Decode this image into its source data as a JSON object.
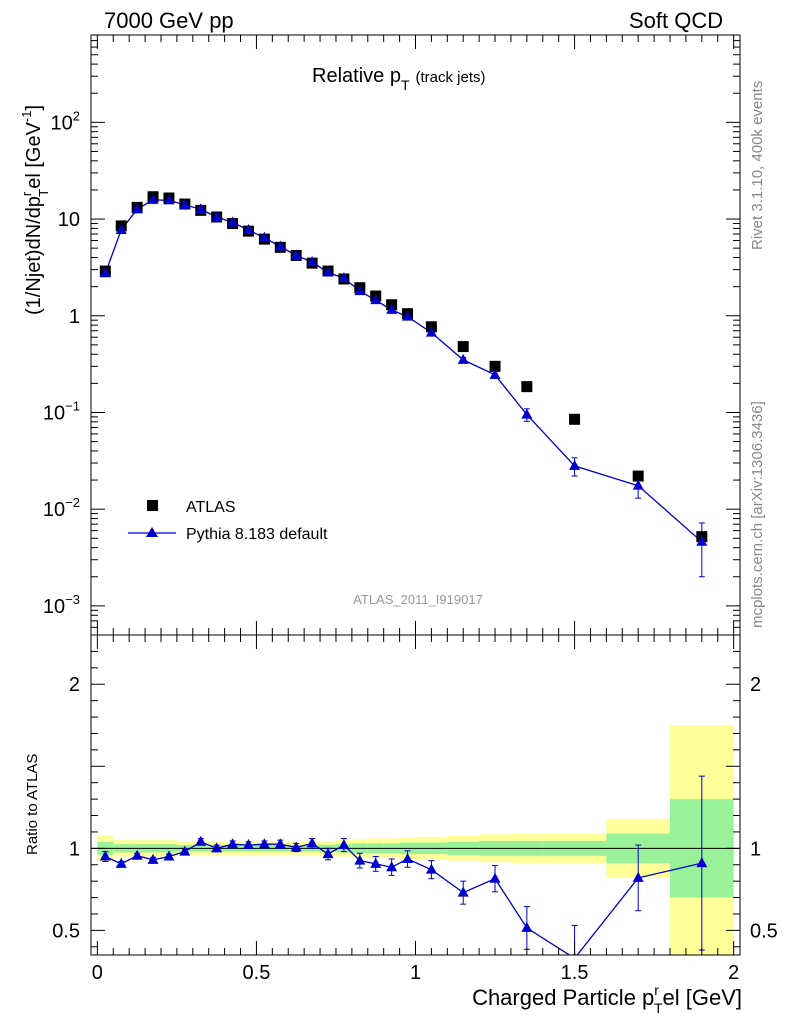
{
  "header": {
    "energy_label": "7000 GeV pp",
    "process_label": "Soft QCD"
  },
  "side_labels": {
    "rivet": "Rivet 3.1.10,  400k events",
    "mcplots": "mcplots.cern.ch [arXiv:1306.3436]"
  },
  "colors": {
    "mc": "#0000cc",
    "band_outer": "#ffff99",
    "band_inner": "#99f299",
    "data": "#000000",
    "watermark": "#999999"
  },
  "chart_data": [
    {
      "type": "scatter",
      "title": "Relative p",
      "title_subscript": "T",
      "title_suffix": "(track jets)",
      "ylabel": "(1/Njet)dN/dp",
      "ylabel_super": "r",
      "ylabel_sub": "T",
      "ylabel_mid": "el [GeV",
      "ylabel_unit_super": "-1",
      "ylabel_end": "]",
      "yscale": "log",
      "ylim": [
        0.0005,
        800
      ],
      "xlim": [
        -0.02,
        2.02
      ],
      "y_ticks": [
        {
          "v": 100,
          "base": "10",
          "exp": "2"
        },
        {
          "v": 10,
          "base": "10",
          "exp": ""
        },
        {
          "v": 1,
          "base": "1",
          "exp": ""
        },
        {
          "v": 0.1,
          "base": "10",
          "exp": "−1"
        },
        {
          "v": 0.01,
          "base": "10",
          "exp": "−2"
        },
        {
          "v": 0.001,
          "base": "10",
          "exp": "−3"
        }
      ],
      "watermark": "ATLAS_2011_I919017",
      "legend": [
        {
          "label": "ATLAS",
          "marker": "square"
        },
        {
          "label": "Pythia 8.183 default",
          "marker": "triangle-line"
        }
      ],
      "series": [
        {
          "name": "ATLAS",
          "x": [
            0.025,
            0.075,
            0.125,
            0.175,
            0.225,
            0.275,
            0.325,
            0.375,
            0.425,
            0.475,
            0.525,
            0.575,
            0.625,
            0.675,
            0.725,
            0.775,
            0.825,
            0.875,
            0.925,
            0.975,
            1.05,
            1.15,
            1.25,
            1.35,
            1.5,
            1.7,
            1.9
          ],
          "y": [
            2.9,
            8.5,
            13.2,
            17.0,
            16.5,
            14.3,
            12.3,
            10.5,
            9.0,
            7.5,
            6.2,
            5.1,
            4.2,
            3.5,
            2.9,
            2.4,
            1.95,
            1.6,
            1.3,
            1.05,
            0.77,
            0.48,
            0.3,
            0.185,
            0.085,
            0.022,
            0.0052
          ]
        },
        {
          "name": "Pythia 8.183 default",
          "x": [
            0.025,
            0.075,
            0.125,
            0.175,
            0.225,
            0.275,
            0.325,
            0.375,
            0.425,
            0.475,
            0.525,
            0.575,
            0.625,
            0.675,
            0.725,
            0.775,
            0.825,
            0.875,
            0.925,
            0.975,
            1.05,
            1.15,
            1.25,
            1.35,
            1.5,
            1.7,
            1.9
          ],
          "y": [
            2.75,
            7.7,
            12.6,
            15.8,
            15.6,
            14.0,
            12.6,
            10.5,
            9.2,
            7.7,
            6.4,
            5.2,
            4.2,
            3.6,
            2.8,
            2.45,
            1.8,
            1.45,
            1.15,
            0.98,
            0.67,
            0.35,
            0.245,
            0.095,
            0.028,
            0.0175,
            0.0046
          ],
          "yerr": [
            0.1,
            0.2,
            0.3,
            0.3,
            0.3,
            0.2,
            0.2,
            0.2,
            0.2,
            0.15,
            0.15,
            0.12,
            0.1,
            0.1,
            0.08,
            0.08,
            0.06,
            0.05,
            0.05,
            0.04,
            0.03,
            0.02,
            0.02,
            0.014,
            0.006,
            0.0045,
            0.0026
          ]
        }
      ]
    },
    {
      "type": "scatter",
      "title": "",
      "ylabel": "Ratio to ATLAS",
      "xlabel": "Charged Particle p",
      "xlabel_super": "r",
      "xlabel_sub": "T",
      "xlabel_end": "el [GeV]",
      "ylim": [
        0.35,
        2.3
      ],
      "xlim": [
        -0.02,
        2.02
      ],
      "x_ticks": [
        "0",
        "0.5",
        "1",
        "1.5",
        "2"
      ],
      "y_ticks": [
        "0.5",
        "1",
        "2"
      ],
      "reference_line": 1,
      "bands": {
        "edges": [
          0.0,
          0.05,
          0.1,
          0.15,
          0.2,
          0.25,
          0.3,
          0.35,
          0.4,
          0.45,
          0.5,
          0.55,
          0.6,
          0.65,
          0.7,
          0.75,
          0.8,
          0.85,
          0.9,
          0.95,
          1.0,
          1.1,
          1.2,
          1.3,
          1.4,
          1.6,
          1.8,
          2.0
        ],
        "outer_half": [
          0.08,
          0.05,
          0.05,
          0.05,
          0.05,
          0.04,
          0.04,
          0.04,
          0.04,
          0.04,
          0.04,
          0.04,
          0.04,
          0.04,
          0.045,
          0.05,
          0.055,
          0.06,
          0.06,
          0.065,
          0.07,
          0.075,
          0.085,
          0.09,
          0.09,
          0.18,
          0.75
        ],
        "inner_half": [
          0.04,
          0.025,
          0.025,
          0.025,
          0.025,
          0.02,
          0.02,
          0.02,
          0.02,
          0.02,
          0.02,
          0.02,
          0.02,
          0.02,
          0.022,
          0.025,
          0.03,
          0.03,
          0.03,
          0.035,
          0.035,
          0.04,
          0.045,
          0.045,
          0.045,
          0.09,
          0.3
        ]
      },
      "series": [
        {
          "name": "Pythia 8.183 default",
          "x": [
            0.025,
            0.075,
            0.125,
            0.175,
            0.225,
            0.275,
            0.325,
            0.375,
            0.425,
            0.475,
            0.525,
            0.575,
            0.625,
            0.675,
            0.725,
            0.775,
            0.825,
            0.875,
            0.925,
            0.975,
            1.05,
            1.15,
            1.25,
            1.35,
            1.5,
            1.7,
            1.9
          ],
          "y": [
            0.95,
            0.905,
            0.955,
            0.93,
            0.95,
            0.98,
            1.04,
            1.0,
            1.025,
            1.02,
            1.025,
            1.025,
            1.005,
            1.03,
            0.965,
            1.02,
            0.925,
            0.905,
            0.885,
            0.935,
            0.87,
            0.73,
            0.815,
            0.515,
            0.33,
            0.82,
            0.91
          ],
          "yerr": [
            0.03,
            0.015,
            0.015,
            0.015,
            0.015,
            0.015,
            0.02,
            0.02,
            0.02,
            0.02,
            0.02,
            0.025,
            0.025,
            0.03,
            0.035,
            0.04,
            0.045,
            0.045,
            0.05,
            0.05,
            0.055,
            0.07,
            0.08,
            0.13,
            0.2,
            0.2,
            0.53
          ]
        }
      ]
    }
  ]
}
